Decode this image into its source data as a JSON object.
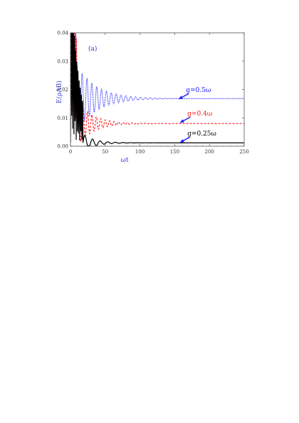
{
  "chart_data": {
    "type": "line",
    "panel_label": "(a)",
    "xlabel": "ωt",
    "ylabel": "E(ρAB)",
    "xlim": [
      0,
      250
    ],
    "ylim": [
      0,
      0.04
    ],
    "xticks": [
      "0",
      "50",
      "100",
      "150",
      "200",
      "250"
    ],
    "yticks": [
      "0.00",
      "0.01",
      "0.02",
      "0.03",
      "0.04"
    ],
    "grid": false,
    "series": [
      {
        "name": "g=0.5ω",
        "color": "#1a1aff",
        "style": "dotted",
        "steady": 0.0168,
        "amp0": 0.012,
        "decay": 0.035,
        "period": 7.0,
        "start": 8
      },
      {
        "name": "g=0.4ω",
        "color": "#ff1a1a",
        "style": "dashed",
        "steady": 0.008,
        "amp0": 0.008,
        "decay": 0.045,
        "period": 6.4,
        "start": 10
      },
      {
        "name": "g=0.25ω",
        "color": "#000000",
        "style": "solid",
        "steady": 0.0012,
        "amp0": 0.003,
        "decay": 0.06,
        "period": 11.0,
        "start": 18
      }
    ],
    "annotations": [
      {
        "text": "g=0.5ω",
        "x": 158,
        "y": 0.0168
      },
      {
        "text": "g=0.4ω",
        "x": 160,
        "y": 0.0085
      },
      {
        "text": "g=0.25ω",
        "x": 160,
        "y": 0.0015
      }
    ]
  }
}
